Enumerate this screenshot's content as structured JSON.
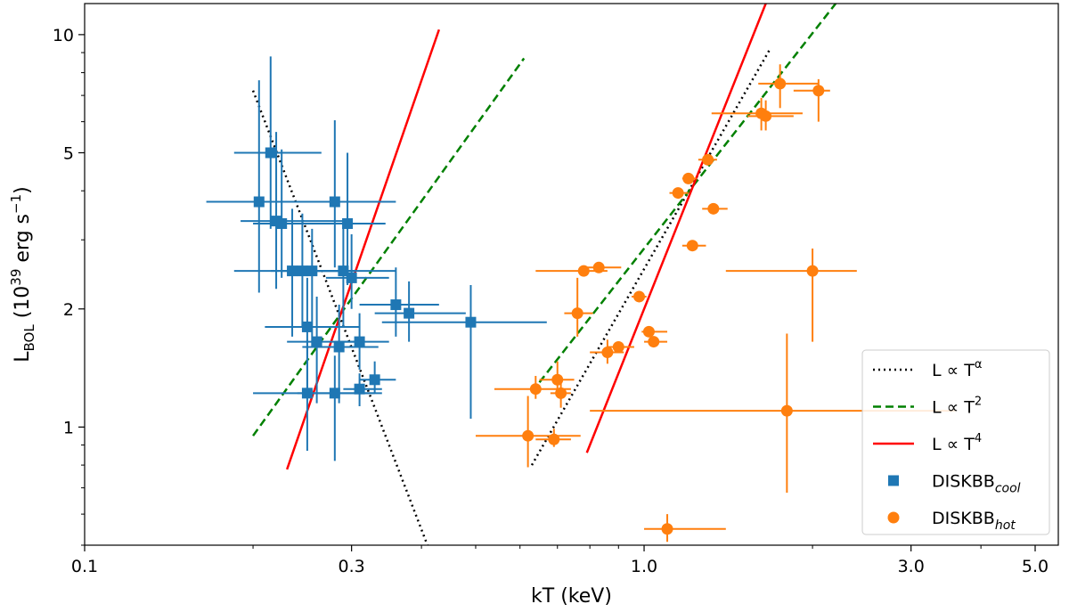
{
  "chart_data": {
    "type": "scatter",
    "xscale": "log",
    "yscale": "log",
    "xlabel": "kT (keV)",
    "ylabel": {
      "main": "L",
      "sub": "BOL",
      "rest": " (10",
      "exp": "39",
      "after": " erg s",
      "exp2": "−1",
      "close": ")"
    },
    "xlim": [
      0.1,
      5.5
    ],
    "ylim": [
      0.5,
      12
    ],
    "xticks": [
      {
        "value": 0.1,
        "label": "0.1"
      },
      {
        "value": 0.3,
        "label": "0.3"
      },
      {
        "value": 1.0,
        "label": "1.0"
      },
      {
        "value": 3.0,
        "label": "3.0"
      },
      {
        "value": 5.0,
        "label": "5.0"
      }
    ],
    "yticks": [
      {
        "value": 1,
        "label": "1"
      },
      {
        "value": 2,
        "label": "2"
      },
      {
        "value": 5,
        "label": "5"
      },
      {
        "value": 10,
        "label": "10"
      }
    ],
    "lines": [
      {
        "name": "L ∝ T^α",
        "label_main": "L ∝ T",
        "label_sup": "α",
        "style": "dotted",
        "color": "#000000",
        "segments": [
          [
            [
              0.2,
              7.2
            ],
            [
              0.41,
              0.5
            ]
          ],
          [
            [
              0.63,
              0.8
            ],
            [
              1.68,
              9.2
            ]
          ]
        ]
      },
      {
        "name": "L ∝ T^2",
        "label_main": "L ∝ T",
        "label_sup": "2",
        "style": "dashed",
        "color": "#008000",
        "segments": [
          [
            [
              0.2,
              0.95
            ],
            [
              0.61,
              8.7
            ]
          ],
          [
            [
              0.65,
              1.3
            ],
            [
              2.2,
              12
            ]
          ]
        ]
      },
      {
        "name": "L ∝ T^4",
        "label_main": "L ∝ T",
        "label_sup": "4",
        "style": "solid",
        "color": "#ff0000",
        "segments": [
          [
            [
              0.23,
              0.78
            ],
            [
              0.43,
              10.3
            ]
          ],
          [
            [
              0.79,
              0.86
            ],
            [
              1.65,
              12
            ]
          ]
        ]
      }
    ],
    "series": [
      {
        "name": "DISKBB_cool",
        "label_main": "DISKBB",
        "label_sub": "cool",
        "marker": "square",
        "color": "#1f77b4",
        "points": [
          {
            "x": 0.205,
            "y": 3.75,
            "xerr": [
              0.04,
              0.06
            ],
            "yerr": [
              1.55,
              3.9
            ]
          },
          {
            "x": 0.215,
            "y": 5.0,
            "xerr": [
              0.03,
              0.05
            ],
            "yerr": [
              1.8,
              3.8
            ]
          },
          {
            "x": 0.22,
            "y": 3.35,
            "xerr": [
              0.03,
              0.07
            ],
            "yerr": [
              1.1,
              2.3
            ]
          },
          {
            "x": 0.225,
            "y": 3.3,
            "xerr": [
              0.025,
              0.05
            ],
            "yerr": [
              0.9,
              1.8
            ]
          },
          {
            "x": 0.235,
            "y": 2.5,
            "xerr": [
              0.05,
              0.07
            ],
            "yerr": [
              0.8,
              1.1
            ]
          },
          {
            "x": 0.245,
            "y": 2.5,
            "xerr": [
              0.03,
              0.06
            ],
            "yerr": [
              0.7,
              1.0
            ]
          },
          {
            "x": 0.25,
            "y": 1.8,
            "xerr": [
              0.04,
              0.06
            ],
            "yerr": [
              0.55,
              0.6
            ]
          },
          {
            "x": 0.25,
            "y": 1.22,
            "xerr": [
              0.05,
              0.08
            ],
            "yerr": [
              0.35,
              0.45
            ]
          },
          {
            "x": 0.255,
            "y": 2.5,
            "xerr": [
              0.03,
              0.05
            ],
            "yerr": [
              0.9,
              0.7
            ]
          },
          {
            "x": 0.26,
            "y": 1.65,
            "xerr": [
              0.03,
              0.05
            ],
            "yerr": [
              0.5,
              0.5
            ]
          },
          {
            "x": 0.28,
            "y": 3.75,
            "xerr": [
              0.04,
              0.08
            ],
            "yerr": [
              1.2,
              2.3
            ]
          },
          {
            "x": 0.285,
            "y": 1.6,
            "xerr": [
              0.04,
              0.05
            ],
            "yerr": [
              0.45,
              0.45
            ]
          },
          {
            "x": 0.28,
            "y": 1.22,
            "xerr": [
              0.04,
              0.06
            ],
            "yerr": [
              0.4,
              0.3
            ]
          },
          {
            "x": 0.29,
            "y": 2.5,
            "xerr": [
              0.04,
              0.07
            ],
            "yerr": [
              0.7,
              0.8
            ]
          },
          {
            "x": 0.295,
            "y": 3.3,
            "xerr": [
              0.04,
              0.05
            ],
            "yerr": [
              1.0,
              1.7
            ]
          },
          {
            "x": 0.3,
            "y": 2.4,
            "xerr": [
              0.03,
              0.05
            ],
            "yerr": [
              0.4,
              0.7
            ]
          },
          {
            "x": 0.31,
            "y": 1.65,
            "xerr": [
              0.03,
              0.04
            ],
            "yerr": [
              0.25,
              0.3
            ]
          },
          {
            "x": 0.31,
            "y": 1.25,
            "xerr": [
              0.02,
              0.03
            ],
            "yerr": [
              0.12,
              0.12
            ]
          },
          {
            "x": 0.33,
            "y": 1.32,
            "xerr": [
              0.02,
              0.03
            ],
            "yerr": [
              0.1,
              0.15
            ]
          },
          {
            "x": 0.36,
            "y": 2.05,
            "xerr": [
              0.05,
              0.07
            ],
            "yerr": [
              0.35,
              0.5
            ]
          },
          {
            "x": 0.38,
            "y": 1.95,
            "xerr": [
              0.05,
              0.1
            ],
            "yerr": [
              0.3,
              0.4
            ]
          },
          {
            "x": 0.49,
            "y": 1.85,
            "xerr": [
              0.15,
              0.18
            ],
            "yerr": [
              0.8,
              0.45
            ]
          }
        ]
      },
      {
        "name": "DISKBB_hot",
        "label_main": "DISKBB",
        "label_sub": "hot",
        "marker": "circle",
        "color": "#ff7f0e",
        "points": [
          {
            "x": 0.62,
            "y": 0.95,
            "xerr": [
              0.12,
              0.15
            ],
            "yerr": [
              0.16,
              0.25
            ]
          },
          {
            "x": 0.64,
            "y": 1.25,
            "xerr": [
              0.1,
              0.1
            ],
            "yerr": [
              0.07,
              0.1
            ]
          },
          {
            "x": 0.69,
            "y": 0.93,
            "xerr": [
              0.05,
              0.05
            ],
            "yerr": [
              0.04,
              0.06
            ]
          },
          {
            "x": 0.7,
            "y": 1.32,
            "xerr": [
              0.05,
              0.05
            ],
            "yerr": [
              0.12,
              0.15
            ]
          },
          {
            "x": 0.71,
            "y": 1.22,
            "xerr": [
              0.03,
              0.03
            ],
            "yerr": [
              0.1,
              0.1
            ]
          },
          {
            "x": 0.76,
            "y": 1.95,
            "xerr": [
              0.04,
              0.05
            ],
            "yerr": [
              0.25,
              0.45
            ]
          },
          {
            "x": 0.78,
            "y": 2.5,
            "xerr": [
              0.14,
              0.08
            ],
            "yerr": [
              0.05,
              0.05
            ]
          },
          {
            "x": 0.83,
            "y": 2.55,
            "xerr": [
              0.06,
              0.08
            ],
            "yerr": [
              0.05,
              0.05
            ]
          },
          {
            "x": 0.86,
            "y": 1.55,
            "xerr": [
              0.06,
              0.06
            ],
            "yerr": [
              0.1,
              0.12
            ]
          },
          {
            "x": 0.9,
            "y": 1.6,
            "xerr": [
              0.04,
              0.06
            ],
            "yerr": [
              0.05,
              0.05
            ]
          },
          {
            "x": 0.98,
            "y": 2.15,
            "xerr": [
              0.03,
              0.03
            ],
            "yerr": [
              0.03,
              0.03
            ]
          },
          {
            "x": 1.02,
            "y": 1.75,
            "xerr": [
              0.03,
              0.08
            ],
            "yerr": [
              0.02,
              0.02
            ]
          },
          {
            "x": 1.04,
            "y": 1.65,
            "xerr": [
              0.04,
              0.06
            ],
            "yerr": [
              0.02,
              0.02
            ]
          },
          {
            "x": 1.1,
            "y": 0.55,
            "xerr": [
              0.1,
              0.3
            ],
            "yerr": [
              0.04,
              0.05
            ]
          },
          {
            "x": 1.15,
            "y": 3.95,
            "xerr": [
              0.04,
              0.05
            ],
            "yerr": [
              0.1,
              0.1
            ]
          },
          {
            "x": 1.2,
            "y": 4.3,
            "xerr": [
              0.03,
              0.04
            ],
            "yerr": [
              0.1,
              0.1
            ]
          },
          {
            "x": 1.22,
            "y": 2.9,
            "xerr": [
              0.05,
              0.07
            ],
            "yerr": [
              0.05,
              0.05
            ]
          },
          {
            "x": 1.3,
            "y": 4.8,
            "xerr": [
              0.05,
              0.05
            ],
            "yerr": [
              0.1,
              0.1
            ]
          },
          {
            "x": 1.33,
            "y": 3.6,
            "xerr": [
              0.06,
              0.08
            ],
            "yerr": [
              0.08,
              0.1
            ]
          },
          {
            "x": 1.62,
            "y": 6.3,
            "xerr": [
              0.3,
              0.3
            ],
            "yerr": [
              0.6,
              0.6
            ]
          },
          {
            "x": 1.65,
            "y": 6.2,
            "xerr": [
              0.12,
              0.2
            ],
            "yerr": [
              0.5,
              0.6
            ]
          },
          {
            "x": 1.75,
            "y": 7.5,
            "xerr": [
              0.15,
              0.3
            ],
            "yerr": [
              1.0,
              0.9
            ]
          },
          {
            "x": 1.8,
            "y": 1.1,
            "xerr": [
              1.0,
              1.8
            ],
            "yerr": [
              0.42,
              0.63
            ]
          },
          {
            "x": 2.0,
            "y": 2.5,
            "xerr": [
              0.6,
              0.4
            ],
            "yerr": [
              0.85,
              0.35
            ]
          },
          {
            "x": 2.05,
            "y": 7.2,
            "xerr": [
              0.2,
              0.1
            ],
            "yerr": [
              1.2,
              0.5
            ]
          }
        ]
      }
    ]
  }
}
